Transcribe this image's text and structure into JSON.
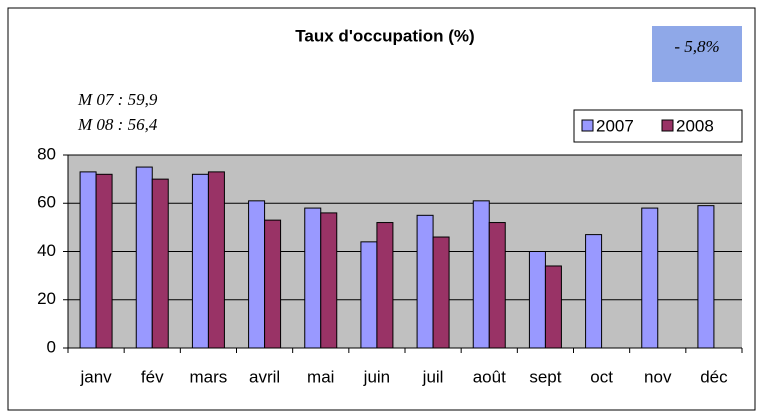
{
  "chart_data": {
    "type": "bar",
    "title": "Taux d'occupation (%)",
    "annotations": [
      "M 07 : 59,9",
      "M 08 : 56,4"
    ],
    "badge": "- 5,8%",
    "categories": [
      "janv",
      "fév",
      "mars",
      "avril",
      "mai",
      "juin",
      "juil",
      "août",
      "sept",
      "oct",
      "nov",
      "déc"
    ],
    "series": [
      {
        "name": "2007",
        "color": "#9999ff",
        "values": [
          73,
          75,
          72,
          61,
          58,
          44,
          55,
          61,
          40,
          47,
          58,
          59
        ]
      },
      {
        "name": "2008",
        "color": "#993366",
        "values": [
          72,
          70,
          73,
          53,
          56,
          52,
          46,
          52,
          34,
          null,
          null,
          null
        ]
      }
    ],
    "ylim": [
      0,
      80
    ],
    "yticks": [
      0,
      20,
      40,
      60,
      80
    ],
    "grid": true,
    "legend": "upper right"
  }
}
